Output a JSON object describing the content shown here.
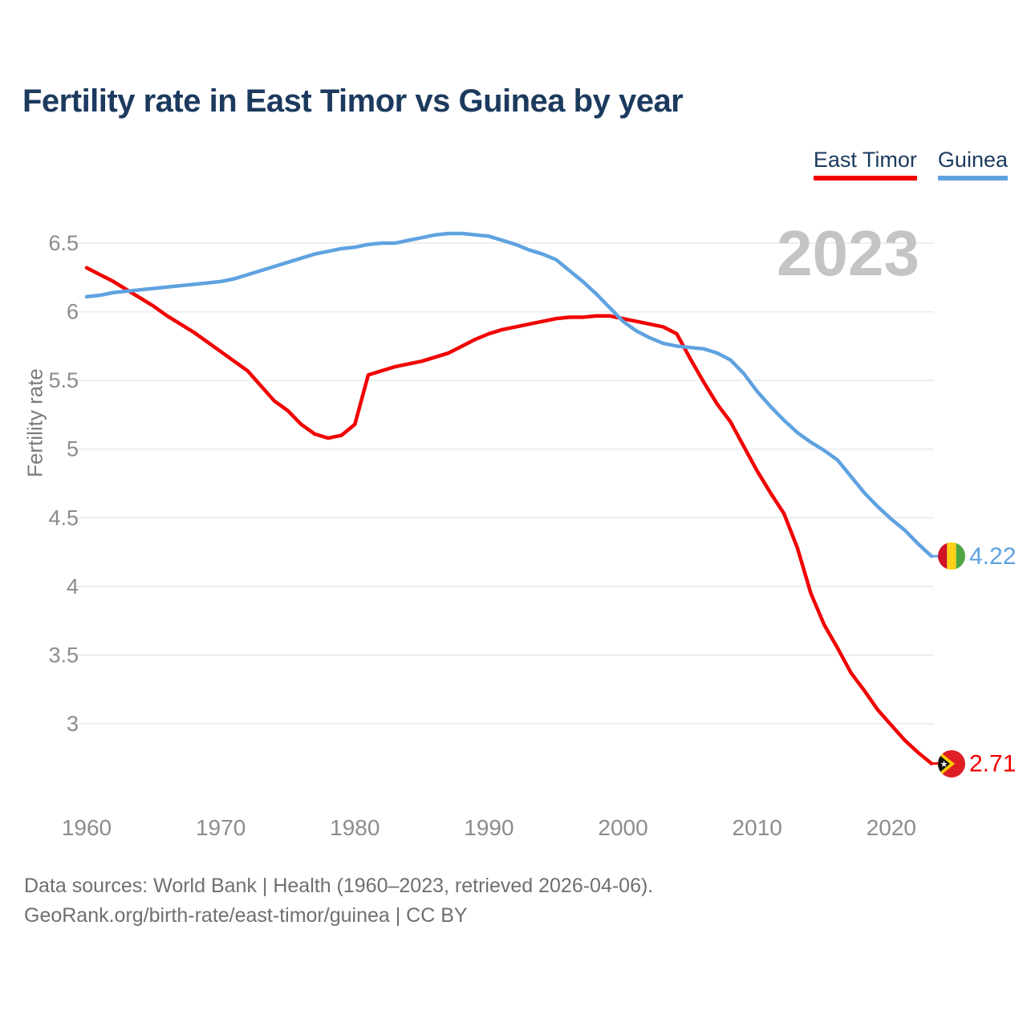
{
  "title": "Fertility rate in East Timor vs Guinea by year",
  "watermark": "2023",
  "legend": [
    {
      "label": "East Timor",
      "color": "#f20000"
    },
    {
      "label": "Guinea",
      "color": "#5fa2e0"
    }
  ],
  "footer": {
    "line1": "Data sources: World Bank | Health (1960–2023, retrieved 2026-04-06).",
    "line2": "GeoRank.org/birth-rate/east-timor/guinea | CC BY"
  },
  "chart_data": {
    "type": "line",
    "title": "Fertility rate in East Timor vs Guinea by year",
    "xlabel": "",
    "ylabel": "Fertility rate",
    "x_ticks": [
      1960,
      1970,
      1980,
      1990,
      2000,
      2010,
      2020
    ],
    "y_ticks": [
      3,
      3.5,
      4,
      4.5,
      5,
      5.5,
      6,
      6.5
    ],
    "xlim": [
      1959,
      2024
    ],
    "ylim": [
      2.6,
      6.65
    ],
    "grid": "horizontal",
    "legend_position": "top-right",
    "years": [
      1960,
      1961,
      1962,
      1963,
      1964,
      1965,
      1966,
      1967,
      1968,
      1969,
      1970,
      1971,
      1972,
      1973,
      1974,
      1975,
      1976,
      1977,
      1978,
      1979,
      1980,
      1981,
      1982,
      1983,
      1984,
      1985,
      1986,
      1987,
      1988,
      1989,
      1990,
      1991,
      1992,
      1993,
      1994,
      1995,
      1996,
      1997,
      1998,
      1999,
      2000,
      2001,
      2002,
      2003,
      2004,
      2005,
      2006,
      2007,
      2008,
      2009,
      2010,
      2011,
      2012,
      2013,
      2014,
      2015,
      2016,
      2017,
      2018,
      2019,
      2020,
      2021,
      2022,
      2023
    ],
    "series": [
      {
        "name": "East Timor",
        "color": "#f20000",
        "end_label": "2.71",
        "flag": "east-timor",
        "values": [
          6.32,
          6.27,
          6.22,
          6.16,
          6.1,
          6.04,
          5.97,
          5.91,
          5.85,
          5.78,
          5.71,
          5.64,
          5.57,
          5.46,
          5.35,
          5.28,
          5.18,
          5.11,
          5.08,
          5.1,
          5.18,
          5.54,
          5.57,
          5.6,
          5.62,
          5.64,
          5.67,
          5.7,
          5.75,
          5.8,
          5.84,
          5.87,
          5.89,
          5.91,
          5.93,
          5.95,
          5.96,
          5.96,
          5.97,
          5.97,
          5.95,
          5.93,
          5.91,
          5.89,
          5.84,
          5.66,
          5.49,
          5.33,
          5.2,
          5.02,
          4.84,
          4.68,
          4.53,
          4.28,
          3.95,
          3.72,
          3.55,
          3.37,
          3.24,
          3.1,
          2.99,
          2.88,
          2.79,
          2.71
        ]
      },
      {
        "name": "Guinea",
        "color": "#5fa2e0",
        "end_label": "4.22",
        "flag": "guinea",
        "values": [
          6.11,
          6.12,
          6.14,
          6.15,
          6.16,
          6.17,
          6.18,
          6.19,
          6.2,
          6.21,
          6.22,
          6.24,
          6.27,
          6.3,
          6.33,
          6.36,
          6.39,
          6.42,
          6.44,
          6.46,
          6.47,
          6.49,
          6.5,
          6.5,
          6.52,
          6.54,
          6.56,
          6.57,
          6.57,
          6.56,
          6.55,
          6.52,
          6.49,
          6.45,
          6.42,
          6.38,
          6.3,
          6.22,
          6.13,
          6.03,
          5.93,
          5.86,
          5.81,
          5.77,
          5.75,
          5.74,
          5.73,
          5.7,
          5.65,
          5.55,
          5.42,
          5.31,
          5.21,
          5.12,
          5.05,
          4.99,
          4.92,
          4.8,
          4.68,
          4.58,
          4.49,
          4.41,
          4.31,
          4.22
        ]
      }
    ]
  }
}
